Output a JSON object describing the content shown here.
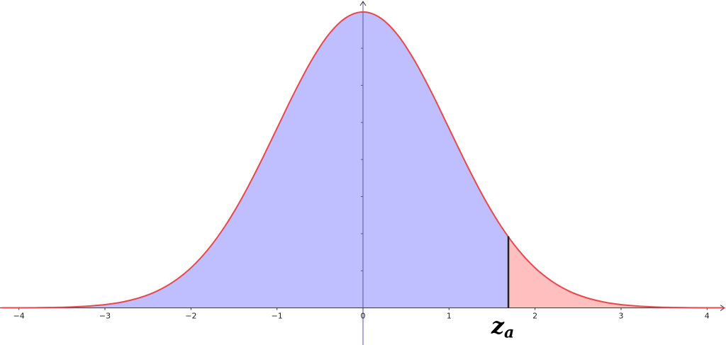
{
  "chart_data": {
    "type": "area",
    "x": [
      -4.2,
      -4.0,
      -3.8,
      -3.6,
      -3.4,
      -3.2,
      -3.0,
      -2.8,
      -2.6,
      -2.4,
      -2.2,
      -2.0,
      -1.8,
      -1.6,
      -1.4,
      -1.2,
      -1.0,
      -0.8,
      -0.6,
      -0.4,
      -0.2,
      0,
      0.2,
      0.4,
      0.6,
      0.8,
      1.0,
      1.2,
      1.4,
      1.6,
      1.8,
      2.0,
      2.2,
      2.4,
      2.6,
      2.8,
      3.0,
      3.2,
      3.4,
      3.6,
      3.8,
      4.0,
      4.2
    ],
    "series": [
      {
        "color": "#e8474c",
        "values": [
          0.0001,
          0.0001,
          0.0003,
          0.0006,
          0.0012,
          0.0024,
          0.0044,
          0.0079,
          0.0136,
          0.0224,
          0.0355,
          0.054,
          0.079,
          0.1109,
          0.1497,
          0.1942,
          0.242,
          0.2897,
          0.3332,
          0.3683,
          0.391,
          0.3989,
          0.391,
          0.3683,
          0.3332,
          0.2897,
          0.242,
          0.1942,
          0.1497,
          0.1109,
          0.079,
          0.054,
          0.0355,
          0.0224,
          0.0136,
          0.0079,
          0.0044,
          0.0024,
          0.0012,
          0.0006,
          0.0003,
          0.0001,
          0.0001
        ]
      }
    ],
    "fill_colors": [
      "#bfbfff",
      "#ffbfbf"
    ],
    "cutoff": {
      "x": 1.69,
      "label": "z",
      "subscript": "a"
    },
    "xlim": [
      -4.22,
      4.22
    ],
    "ylim": [
      -0.05,
      0.415
    ],
    "xticks": [
      {
        "value": -4,
        "label": "−4"
      },
      {
        "value": -3,
        "label": "−3"
      },
      {
        "value": -2,
        "label": "−2"
      },
      {
        "value": -1,
        "label": "−1"
      },
      0,
      1,
      2,
      3,
      4
    ],
    "yticks": [
      0.05,
      0.1,
      0.15,
      0.2,
      0.25,
      0.3,
      0.35
    ]
  }
}
